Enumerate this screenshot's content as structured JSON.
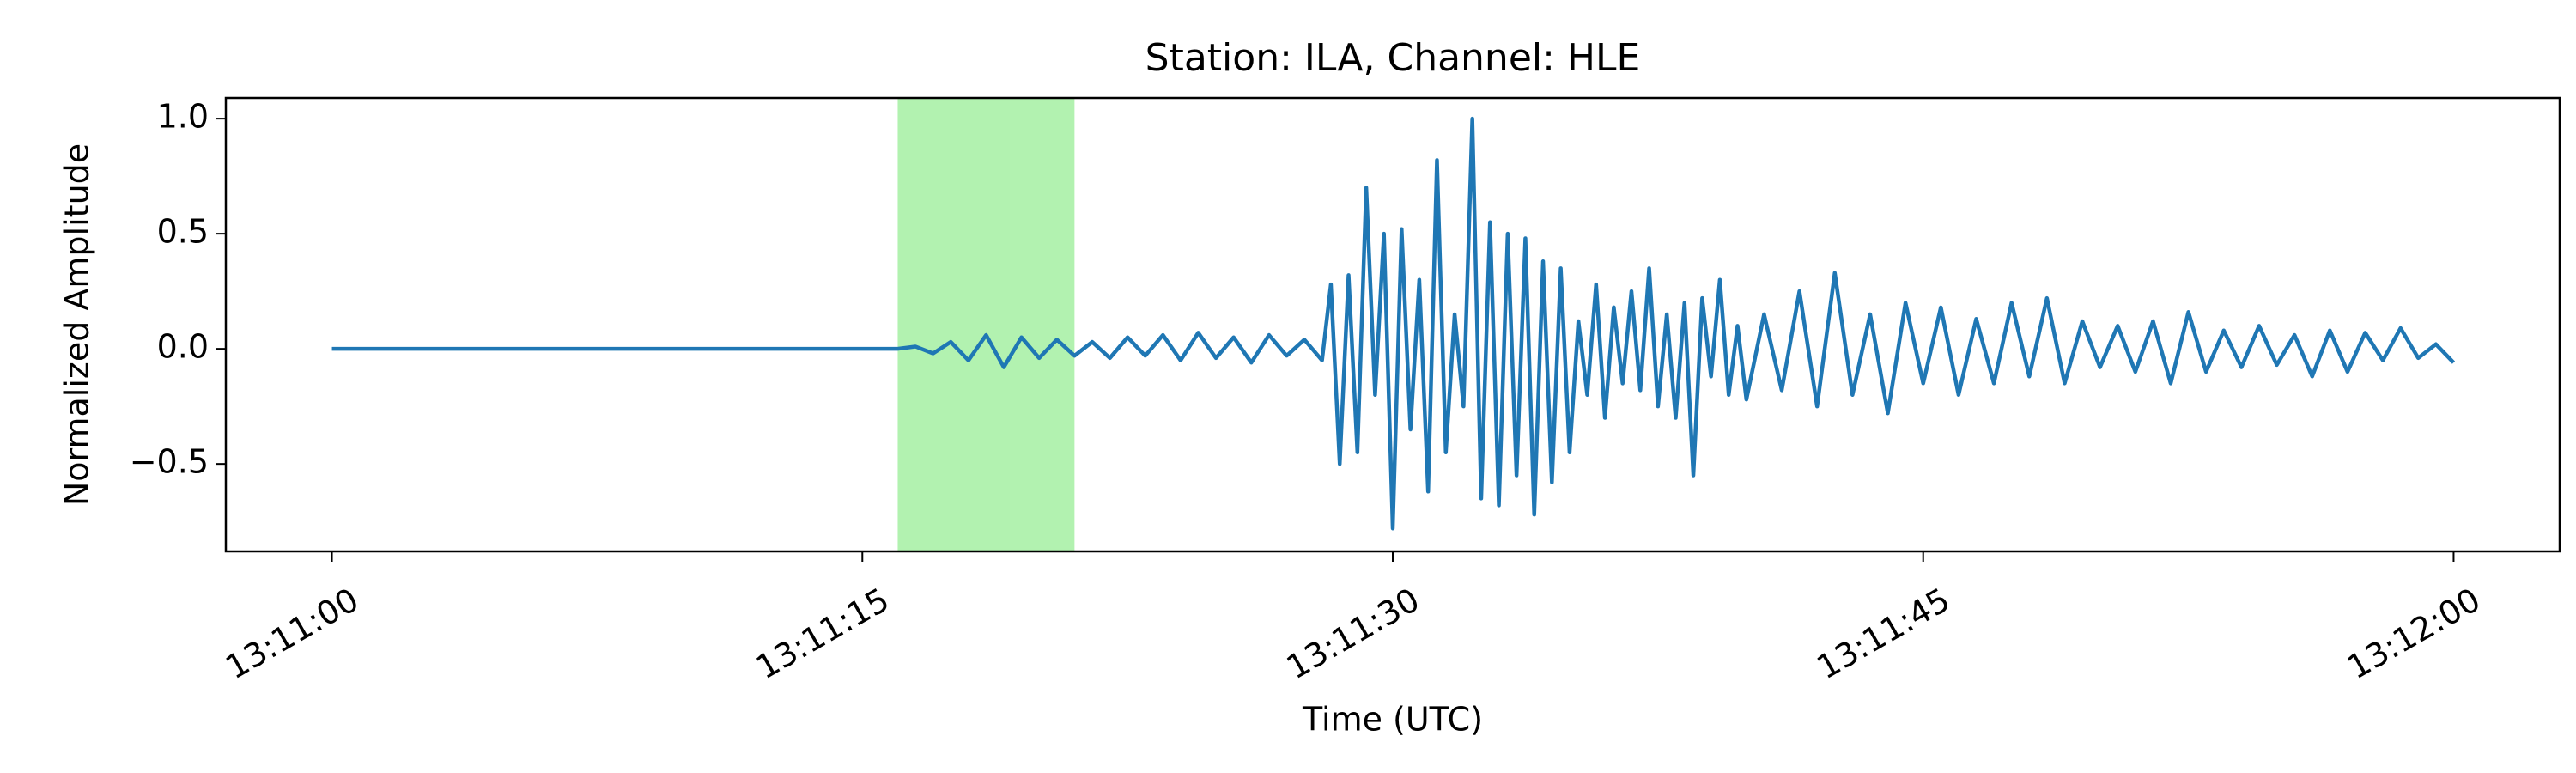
{
  "chart_data": {
    "type": "line",
    "title": "Station: ILA, Channel: HLE",
    "x_label": "Time (UTC)",
    "y_label": "Normalized Amplitude",
    "xlim": [
      "13:10:57",
      "13:12:03"
    ],
    "xticks": [
      "13:11:00",
      "13:11:15",
      "13:11:30",
      "13:11:45",
      "13:12:00"
    ],
    "ylim": [
      -0.88,
      1.09
    ],
    "yticks": [
      {
        "value": -0.5,
        "label": "−0.5"
      },
      {
        "value": 0,
        "label": "0.0"
      },
      0.5,
      {
        "value": 1.0,
        "label": "1.0"
      }
    ],
    "highlight_span": {
      "x": [
        "13:11:16",
        "13:11:21"
      ],
      "color": "#b2f2b0"
    },
    "series": [
      {
        "name": "HLE",
        "color": "#1f77b4",
        "x": [
          "13:11:00",
          "13:11:16",
          "13:11:16.5",
          "13:11:17",
          "13:11:17.5",
          "13:11:18",
          "13:11:18.5",
          "13:11:19",
          "13:11:19.5",
          "13:11:20",
          "13:11:20.5",
          "13:11:21",
          "13:11:21.5",
          "13:11:22",
          "13:11:22.5",
          "13:11:23",
          "13:11:23.5",
          "13:11:24",
          "13:11:24.5",
          "13:11:25",
          "13:11:25.5",
          "13:11:26",
          "13:11:26.5",
          "13:11:27",
          "13:11:27.5",
          "13:11:28",
          "13:11:28.25",
          "13:11:28.5",
          "13:11:28.75",
          "13:11:29",
          "13:11:29.25",
          "13:11:29.5",
          "13:11:29.75",
          "13:11:30",
          "13:11:30.25",
          "13:11:30.5",
          "13:11:30.75",
          "13:11:31",
          "13:11:31.25",
          "13:11:31.5",
          "13:11:31.75",
          "13:11:32",
          "13:11:32.25",
          "13:11:32.5",
          "13:11:32.75",
          "13:11:33",
          "13:11:33.25",
          "13:11:33.5",
          "13:11:33.75",
          "13:11:34",
          "13:11:34.25",
          "13:11:34.5",
          "13:11:34.75",
          "13:11:35",
          "13:11:35.25",
          "13:11:35.5",
          "13:11:35.75",
          "13:11:36",
          "13:11:36.25",
          "13:11:36.5",
          "13:11:36.75",
          "13:11:37",
          "13:11:37.25",
          "13:11:37.5",
          "13:11:37.75",
          "13:11:38",
          "13:11:38.25",
          "13:11:38.5",
          "13:11:38.75",
          "13:11:39",
          "13:11:39.25",
          "13:11:39.5",
          "13:11:39.75",
          "13:11:40",
          "13:11:40.5",
          "13:11:41",
          "13:11:41.5",
          "13:11:42",
          "13:11:42.5",
          "13:11:43",
          "13:11:43.5",
          "13:11:44",
          "13:11:44.5",
          "13:11:45",
          "13:11:45.5",
          "13:11:46",
          "13:11:46.5",
          "13:11:47",
          "13:11:47.5",
          "13:11:48",
          "13:11:48.5",
          "13:11:49",
          "13:11:49.5",
          "13:11:50",
          "13:11:50.5",
          "13:11:51",
          "13:11:51.5",
          "13:11:52",
          "13:11:52.5",
          "13:11:53",
          "13:11:53.5",
          "13:11:54",
          "13:11:54.5",
          "13:11:55",
          "13:11:55.5",
          "13:11:56",
          "13:11:56.5",
          "13:11:57",
          "13:11:57.5",
          "13:11:58",
          "13:11:58.5",
          "13:11:59",
          "13:11:59.5",
          "13:12:00"
        ],
        "values": [
          0,
          0,
          0.01,
          -0.02,
          0.03,
          -0.05,
          0.06,
          -0.08,
          0.05,
          -0.04,
          0.04,
          -0.03,
          0.03,
          -0.04,
          0.05,
          -0.03,
          0.06,
          -0.05,
          0.07,
          -0.04,
          0.05,
          -0.06,
          0.06,
          -0.03,
          0.04,
          -0.05,
          0.28,
          -0.5,
          0.32,
          -0.45,
          0.7,
          -0.2,
          0.5,
          -0.78,
          0.52,
          -0.35,
          0.3,
          -0.62,
          0.82,
          -0.45,
          0.15,
          -0.25,
          1.0,
          -0.65,
          0.55,
          -0.68,
          0.5,
          -0.55,
          0.48,
          -0.72,
          0.38,
          -0.58,
          0.35,
          -0.45,
          0.12,
          -0.2,
          0.28,
          -0.3,
          0.18,
          -0.15,
          0.25,
          -0.18,
          0.35,
          -0.25,
          0.15,
          -0.3,
          0.2,
          -0.55,
          0.22,
          -0.12,
          0.3,
          -0.2,
          0.1,
          -0.22,
          0.15,
          -0.18,
          0.25,
          -0.25,
          0.33,
          -0.2,
          0.15,
          -0.28,
          0.2,
          -0.15,
          0.18,
          -0.2,
          0.13,
          -0.15,
          0.2,
          -0.12,
          0.22,
          -0.15,
          0.12,
          -0.08,
          0.1,
          -0.1,
          0.12,
          -0.15,
          0.16,
          -0.1,
          0.08,
          -0.08,
          0.1,
          -0.07,
          0.06,
          -0.12,
          0.08,
          -0.1,
          0.07,
          -0.05,
          0.09,
          -0.04,
          0.02,
          -0.06
        ]
      }
    ]
  }
}
